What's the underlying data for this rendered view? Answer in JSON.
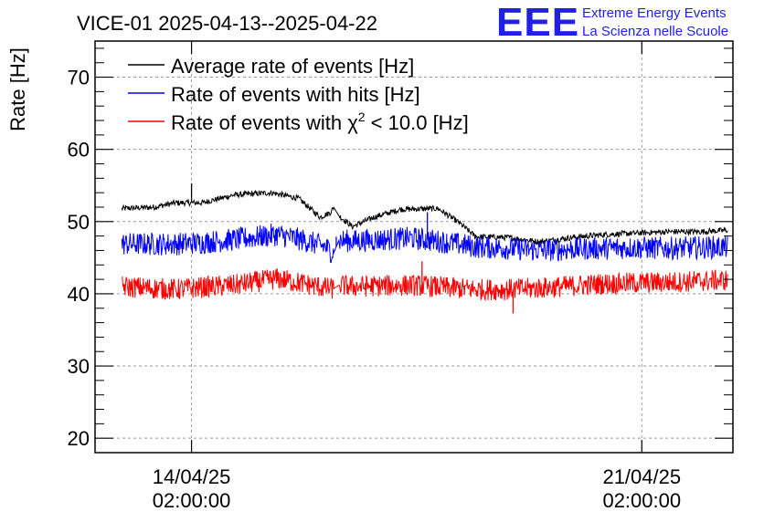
{
  "header": {
    "title": "VICE-01 2025-04-13--2025-04-22"
  },
  "logo": {
    "mark": "EEE",
    "line1": "Extreme Energy Events",
    "line2": "La Scienza nelle Scuole",
    "color": "#1f1fe6"
  },
  "chart_data": {
    "type": "line",
    "ylabel": "Rate [Hz]",
    "xlabel": "",
    "ylim": [
      18,
      75
    ],
    "y_ticks": [
      20,
      30,
      40,
      50,
      60,
      70
    ],
    "xlim": [
      "2025-04-12T14:00:00",
      "2025-04-22T12:00:00"
    ],
    "x_ticks": [
      {
        "at": "2025-04-14T02:00:00",
        "date": "14/04/25",
        "time": "02:00:00"
      },
      {
        "at": "2025-04-21T02:00:00",
        "date": "21/04/25",
        "time": "02:00:00"
      }
    ],
    "grid": true,
    "legend_position": "top-left",
    "gap": [
      "2025-04-16T07:00:00",
      "2025-04-16T09:00:00"
    ],
    "series": [
      {
        "name": "Average rate of events [Hz]",
        "color": "#000000",
        "noise": 0.4,
        "spikes": [
          [
            "2025-04-14T02:00:00",
            55.3
          ],
          [
            "2025-04-18T12:00:00",
            48.2
          ]
        ],
        "points": [
          [
            "2025-04-13T00:00:00",
            51.8
          ],
          [
            "2025-04-13T12:00:00",
            52.0
          ],
          [
            "2025-04-13T20:00:00",
            52.6
          ],
          [
            "2025-04-14T06:00:00",
            52.6
          ],
          [
            "2025-04-14T18:00:00",
            53.7
          ],
          [
            "2025-04-15T08:00:00",
            54.0
          ],
          [
            "2025-04-15T18:00:00",
            53.2
          ],
          [
            "2025-04-16T02:00:00",
            50.6
          ],
          [
            "2025-04-16T06:00:00",
            51.3
          ],
          [
            "2025-04-16T07:00:00",
            52.0
          ],
          [
            "2025-04-16T09:00:00",
            50.8
          ],
          [
            "2025-04-16T14:00:00",
            49.3
          ],
          [
            "2025-04-16T22:00:00",
            50.6
          ],
          [
            "2025-04-17T08:00:00",
            51.7
          ],
          [
            "2025-04-17T22:00:00",
            51.8
          ],
          [
            "2025-04-18T06:00:00",
            49.8
          ],
          [
            "2025-04-18T12:00:00",
            47.9
          ],
          [
            "2025-04-19T00:00:00",
            47.8
          ],
          [
            "2025-04-19T12:00:00",
            47.2
          ],
          [
            "2025-04-20T00:00:00",
            47.8
          ],
          [
            "2025-04-20T12:00:00",
            48.2
          ],
          [
            "2025-04-21T00:00:00",
            48.4
          ],
          [
            "2025-04-21T12:00:00",
            48.6
          ],
          [
            "2025-04-22T00:00:00",
            48.6
          ],
          [
            "2025-04-22T10:00:00",
            48.8
          ]
        ]
      },
      {
        "name": "Rate of events with hits [Hz]",
        "color": "#0000ff",
        "noise": 1.6,
        "spikes": [
          [
            "2025-04-17T18:00:00",
            51.3
          ],
          [
            "2025-04-16T08:00:00",
            47.9
          ]
        ],
        "points": [
          [
            "2025-04-13T00:00:00",
            46.9
          ],
          [
            "2025-04-13T20:00:00",
            46.9
          ],
          [
            "2025-04-14T06:00:00",
            47.1
          ],
          [
            "2025-04-14T18:00:00",
            47.5
          ],
          [
            "2025-04-15T10:00:00",
            48.2
          ],
          [
            "2025-04-15T20:00:00",
            47.4
          ],
          [
            "2025-04-16T04:00:00",
            46.5
          ],
          [
            "2025-04-16T07:00:00",
            45.6
          ],
          [
            "2025-04-16T09:00:00",
            47.4
          ],
          [
            "2025-04-16T14:00:00",
            47.3
          ],
          [
            "2025-04-17T00:00:00",
            47.5
          ],
          [
            "2025-04-17T12:00:00",
            47.7
          ],
          [
            "2025-04-18T00:00:00",
            47.2
          ],
          [
            "2025-04-18T12:00:00",
            46.5
          ],
          [
            "2025-04-19T00:00:00",
            46.3
          ],
          [
            "2025-04-19T12:00:00",
            46.0
          ],
          [
            "2025-04-20T00:00:00",
            46.2
          ],
          [
            "2025-04-20T12:00:00",
            46.3
          ],
          [
            "2025-04-21T00:00:00",
            46.4
          ],
          [
            "2025-04-21T12:00:00",
            46.3
          ],
          [
            "2025-04-22T10:00:00",
            46.5
          ]
        ]
      },
      {
        "name": "Rate of events with χ² < 10.0 [Hz]",
        "color": "#ff0000",
        "noise": 1.5,
        "spikes": [
          [
            "2025-04-17T16:00:00",
            44.5
          ],
          [
            "2025-04-19T02:00:00",
            37.3
          ]
        ],
        "points": [
          [
            "2025-04-13T00:00:00",
            41.0
          ],
          [
            "2025-04-13T20:00:00",
            40.6
          ],
          [
            "2025-04-14T06:00:00",
            40.9
          ],
          [
            "2025-04-14T18:00:00",
            41.2
          ],
          [
            "2025-04-15T10:00:00",
            42.1
          ],
          [
            "2025-04-15T20:00:00",
            41.4
          ],
          [
            "2025-04-16T04:00:00",
            40.8
          ],
          [
            "2025-04-16T07:00:00",
            40.7
          ],
          [
            "2025-04-16T09:00:00",
            41.2
          ],
          [
            "2025-04-16T14:00:00",
            41.0
          ],
          [
            "2025-04-17T00:00:00",
            41.1
          ],
          [
            "2025-04-17T12:00:00",
            41.2
          ],
          [
            "2025-04-18T00:00:00",
            40.9
          ],
          [
            "2025-04-18T12:00:00",
            40.6
          ],
          [
            "2025-04-19T00:00:00",
            40.6
          ],
          [
            "2025-04-19T12:00:00",
            40.8
          ],
          [
            "2025-04-20T00:00:00",
            41.1
          ],
          [
            "2025-04-20T12:00:00",
            41.4
          ],
          [
            "2025-04-21T00:00:00",
            41.5
          ],
          [
            "2025-04-21T12:00:00",
            41.6
          ],
          [
            "2025-04-22T10:00:00",
            41.9
          ]
        ]
      }
    ]
  }
}
